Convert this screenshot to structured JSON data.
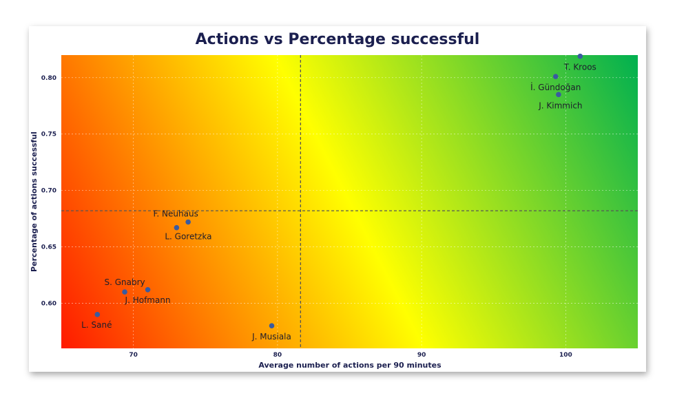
{
  "chart_data": {
    "type": "scatter",
    "title": "Actions vs Percentage successful",
    "xlabel": "Average number of actions per 90 minutes",
    "ylabel": "Percentage of actions successful",
    "xlim": [
      65,
      105
    ],
    "ylim": [
      0.56,
      0.82
    ],
    "x_ticks": [
      70,
      80,
      90,
      100
    ],
    "x_tick_labels": [
      "70",
      "80",
      "90",
      "100"
    ],
    "y_ticks": [
      0.6,
      0.65,
      0.7,
      0.75,
      0.8
    ],
    "y_tick_labels": [
      "0.60",
      "0.65",
      "0.70",
      "0.75",
      "0.80"
    ],
    "grid": true,
    "background": "red-yellow-green diagonal gradient",
    "colors": {
      "low": "#ff1a00",
      "mid": "#ffff00",
      "high": "#00b050",
      "point": "#3a5ba0",
      "title": "#1b1f4f"
    },
    "reference_lines": {
      "x": 81.6,
      "y": 0.682
    },
    "points": [
      {
        "label": "T. Kroos",
        "x": 101.0,
        "y": 0.819
      },
      {
        "label": "İ. Gündoğan",
        "x": 99.3,
        "y": 0.801
      },
      {
        "label": "J. Kimmich",
        "x": 99.5,
        "y": 0.785
      },
      {
        "label": "F. Neuhaus",
        "x": 73.8,
        "y": 0.672
      },
      {
        "label": "L. Goretzka",
        "x": 73.0,
        "y": 0.667
      },
      {
        "label": "S. Gnabry",
        "x": 69.4,
        "y": 0.61
      },
      {
        "label": "J. Hofmann",
        "x": 71.0,
        "y": 0.612
      },
      {
        "label": "L. Sané",
        "x": 67.5,
        "y": 0.59
      },
      {
        "label": "J. Musiala",
        "x": 79.6,
        "y": 0.58
      }
    ]
  }
}
